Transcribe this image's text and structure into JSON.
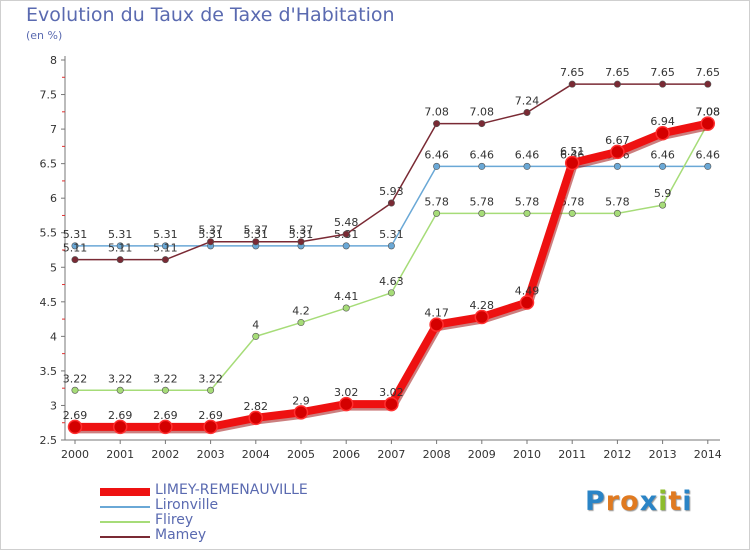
{
  "header": {
    "title": "Evolution du Taux de Taxe d'Habitation",
    "subtitle": "(en %)"
  },
  "logo": {
    "text": "Proxiti",
    "letter_colors": [
      "#2a84c6",
      "#e07a20",
      "#e07a20",
      "#2a84c6",
      "#8cbc2c",
      "#e07a20",
      "#2a84c6"
    ]
  },
  "chart_data": {
    "type": "line",
    "x": [
      "2000",
      "2001",
      "2002",
      "2003",
      "2004",
      "2005",
      "2006",
      "2007",
      "2008",
      "2009",
      "2010",
      "2011",
      "2012",
      "2013",
      "2014"
    ],
    "ylim": [
      2.5,
      8
    ],
    "yticks": [
      "2.5",
      "3",
      "3.5",
      "4",
      "4.5",
      "5",
      "5.5",
      "6",
      "6.5",
      "7",
      "7.5",
      "8"
    ],
    "grid": false,
    "legend_position": "bottom-left",
    "series": [
      {
        "name": "LIMEY-REMENAUVILLE",
        "color": "#ee1111",
        "values": [
          2.69,
          2.69,
          2.69,
          2.69,
          2.82,
          2.9,
          3.02,
          3.02,
          4.17,
          4.28,
          4.49,
          6.51,
          6.67,
          6.94,
          7.08
        ],
        "labels": [
          "2.69",
          "2.69",
          "2.69",
          "2.69",
          "2.82",
          "2.9",
          "3.02",
          "3.02",
          "4.17",
          "4.28",
          "4.49",
          "6.51",
          "6.67",
          "6.94",
          "7.08"
        ]
      },
      {
        "name": "Lironville",
        "color": "#6aa8d6",
        "values": [
          5.31,
          5.31,
          5.31,
          5.31,
          5.31,
          5.31,
          5.31,
          5.31,
          6.46,
          6.46,
          6.46,
          6.46,
          6.46,
          6.46,
          6.46
        ],
        "labels": [
          "5.31",
          "5.31",
          "5.31",
          "5.31",
          "5.31",
          "5.31",
          "5.31",
          "5.31",
          "6.46",
          "6.46",
          "6.46",
          "6.46",
          "6.46",
          "6.46",
          "6.46"
        ]
      },
      {
        "name": "Flirey",
        "color": "#a6dc78",
        "values": [
          3.22,
          3.22,
          3.22,
          3.22,
          4,
          4.2,
          4.41,
          4.63,
          5.78,
          5.78,
          5.78,
          5.78,
          5.78,
          5.9,
          7.08
        ],
        "labels": [
          "3.22",
          "3.22",
          "3.22",
          "3.22",
          "4",
          "4.2",
          "4.41",
          "4.63",
          "5.78",
          "5.78",
          "5.78",
          "5.78",
          "5.78",
          "5.9",
          "7.08"
        ]
      },
      {
        "name": "Mamey",
        "color": "#7a2a34",
        "values": [
          5.11,
          5.11,
          5.11,
          5.37,
          5.37,
          5.37,
          5.48,
          5.93,
          7.08,
          7.08,
          7.24,
          7.65,
          7.65,
          7.65,
          7.65
        ],
        "labels": [
          "5.11",
          "5.11",
          "5.11",
          "5.37",
          "5.37",
          "5.37",
          "5.48",
          "5.93",
          "7.08",
          "7.08",
          "7.24",
          "7.65",
          "7.65",
          "7.65",
          "7.65"
        ]
      }
    ]
  }
}
